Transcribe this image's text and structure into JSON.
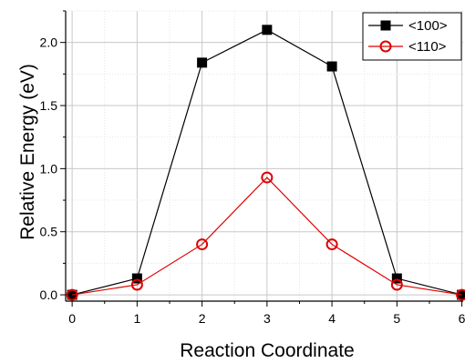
{
  "chart_data": {
    "type": "line",
    "title": "",
    "xlabel": "Reaction Coordinate",
    "ylabel": "Relative Energy (eV)",
    "xlim": [
      -0.1,
      6.02
    ],
    "ylim": [
      -0.05,
      2.25
    ],
    "xticks": [
      0,
      1,
      2,
      3,
      4,
      5,
      6
    ],
    "xtick_labels": [
      "0",
      "1",
      "2",
      "3",
      "4",
      "5",
      "6"
    ],
    "yticks": [
      0.0,
      0.5,
      1.0,
      1.5,
      2.0
    ],
    "ytick_labels": [
      "0.0",
      "0.5",
      "1.0",
      "1.5",
      "2.0"
    ],
    "grid": true,
    "legend_position": "top-right",
    "x": [
      0,
      1,
      2,
      3,
      4,
      5,
      6
    ],
    "series": [
      {
        "name": "<100>",
        "values": [
          0.0,
          0.13,
          1.84,
          2.1,
          1.81,
          0.13,
          0.0
        ],
        "color": "#000000",
        "marker": "filled-square"
      },
      {
        "name": "<110>",
        "values": [
          0.0,
          0.08,
          0.4,
          0.93,
          0.4,
          0.08,
          0.0
        ],
        "color": "#e00000",
        "marker": "open-circle"
      }
    ]
  }
}
